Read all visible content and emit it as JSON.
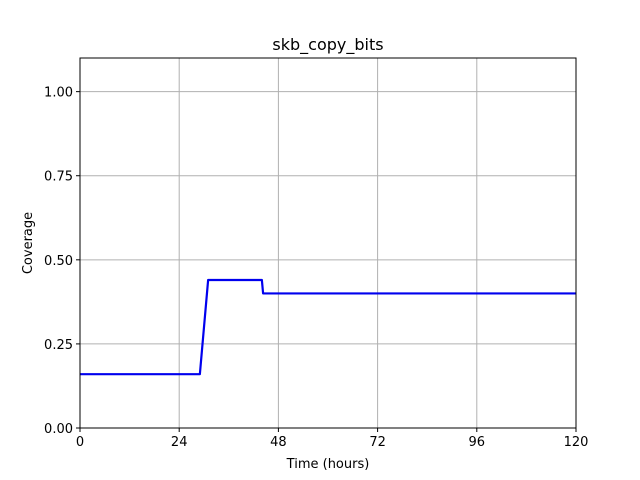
{
  "chart_data": {
    "type": "line",
    "title": "skb_copy_bits",
    "xlabel": "Time (hours)",
    "ylabel": "Coverage",
    "xlim": [
      0,
      120
    ],
    "ylim": [
      0,
      1.1
    ],
    "xticks": [
      0,
      24,
      48,
      72,
      96,
      120
    ],
    "xtick_labels": [
      "0",
      "24",
      "48",
      "72",
      "96",
      "120"
    ],
    "yticks": [
      0,
      0.25,
      0.5,
      0.75,
      1.0
    ],
    "ytick_labels": [
      "0.00",
      "0.25",
      "0.50",
      "0.75",
      "1.00"
    ],
    "grid": true,
    "series": [
      {
        "color": "#0000ee",
        "x": [
          0,
          29,
          31,
          44,
          44.3,
          120
        ],
        "y": [
          0.16,
          0.16,
          0.44,
          0.44,
          0.4,
          0.4
        ]
      }
    ]
  }
}
